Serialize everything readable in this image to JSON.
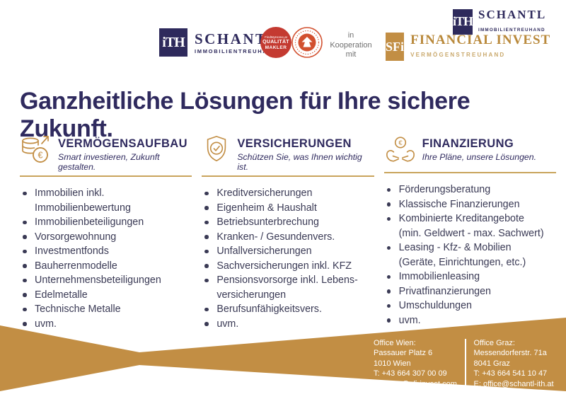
{
  "headline": "Ganzheitliche Lösungen für Ihre sichere Zukunft.",
  "header": {
    "main_logo": {
      "mark": "iTH",
      "brand": "SCHANTL",
      "subtitle": "IMMOBILIENTREUHAND"
    },
    "quality_seal": {
      "line1": "FindMyHome.at",
      "line2": "QUALITÄT",
      "line3": "MAKLER"
    },
    "cooperation": {
      "line1": "in",
      "line2": "Kooperation",
      "line3": "mit"
    },
    "sfi_logo": {
      "mark": "SFi",
      "brand": "FINANCIAL INVEST",
      "subtitle": "VERMÖGENSTREUHAND"
    },
    "corner_logo": {
      "mark": "iTH",
      "brand": "SCHANTL",
      "subtitle": "IMMOBILIENTREUHAND"
    }
  },
  "columns": [
    {
      "icon": "coins-growth-icon",
      "title": "VERMÖGENSAUFBAU",
      "subtitle": "Smart investieren, Zukunft gestalten.",
      "items": [
        "Immobilien inkl.\nImmobilienbewertung",
        "Immobilienbeteiligungen",
        "Vorsorgewohnung",
        "Investmentfonds",
        "Bauherrenmodelle",
        "Unternehmensbeteiligungen",
        "Edelmetalle",
        "Technische Metalle",
        "uvm."
      ]
    },
    {
      "icon": "shield-check-icon",
      "title": "VERSICHERUNGEN",
      "subtitle": "Schützen Sie, was Ihnen wichtig ist.",
      "items": [
        "Kreditversicherungen",
        "Eigenheim & Haushalt",
        "Betriebsunterbrechung",
        "Kranken- / Gesundenvers.",
        "Unfallversicherungen",
        "Sachversicherungen inkl. KFZ",
        "Pensionsvorsorge inkl. Lebens-\nversicherungen",
        "Berufsunfähigkeitsvers.",
        "uvm."
      ]
    },
    {
      "icon": "hands-euro-icon",
      "title": "FINANZIERUNG",
      "subtitle": "Ihre Pläne, unsere Lösungen.",
      "items": [
        "Förderungsberatung",
        "Klassische Finanzierungen",
        "Kombinierte Kreditangebote\n(min. Geldwert - max. Sachwert)",
        "Leasing - Kfz- & Mobilien\n(Geräte, Einrichtungen, etc.)",
        "Immobilienleasing",
        "Privatfinanzierungen",
        "Umschuldungen",
        "uvm."
      ]
    }
  ],
  "footer": {
    "offices": [
      {
        "title": "Office Wien:",
        "address1": "Passauer Platz 6",
        "address2": "1010 Wien",
        "phone": "T: +43 664 307 00 09",
        "email": "E: office@sfi-invest.com"
      },
      {
        "title": "Office Graz:",
        "address1": "Messendorferstr. 71a",
        "address2": "8041 Graz",
        "phone": "T: +43 664 541 10 47",
        "email": "E: office@schantl-ith.at"
      }
    ]
  },
  "colors": {
    "navy": "#2F2A5E",
    "gold": "#C28E44",
    "gold_line": "#C9A45C",
    "seal_red": "#C43A31",
    "body_text": "#3A3A55"
  }
}
